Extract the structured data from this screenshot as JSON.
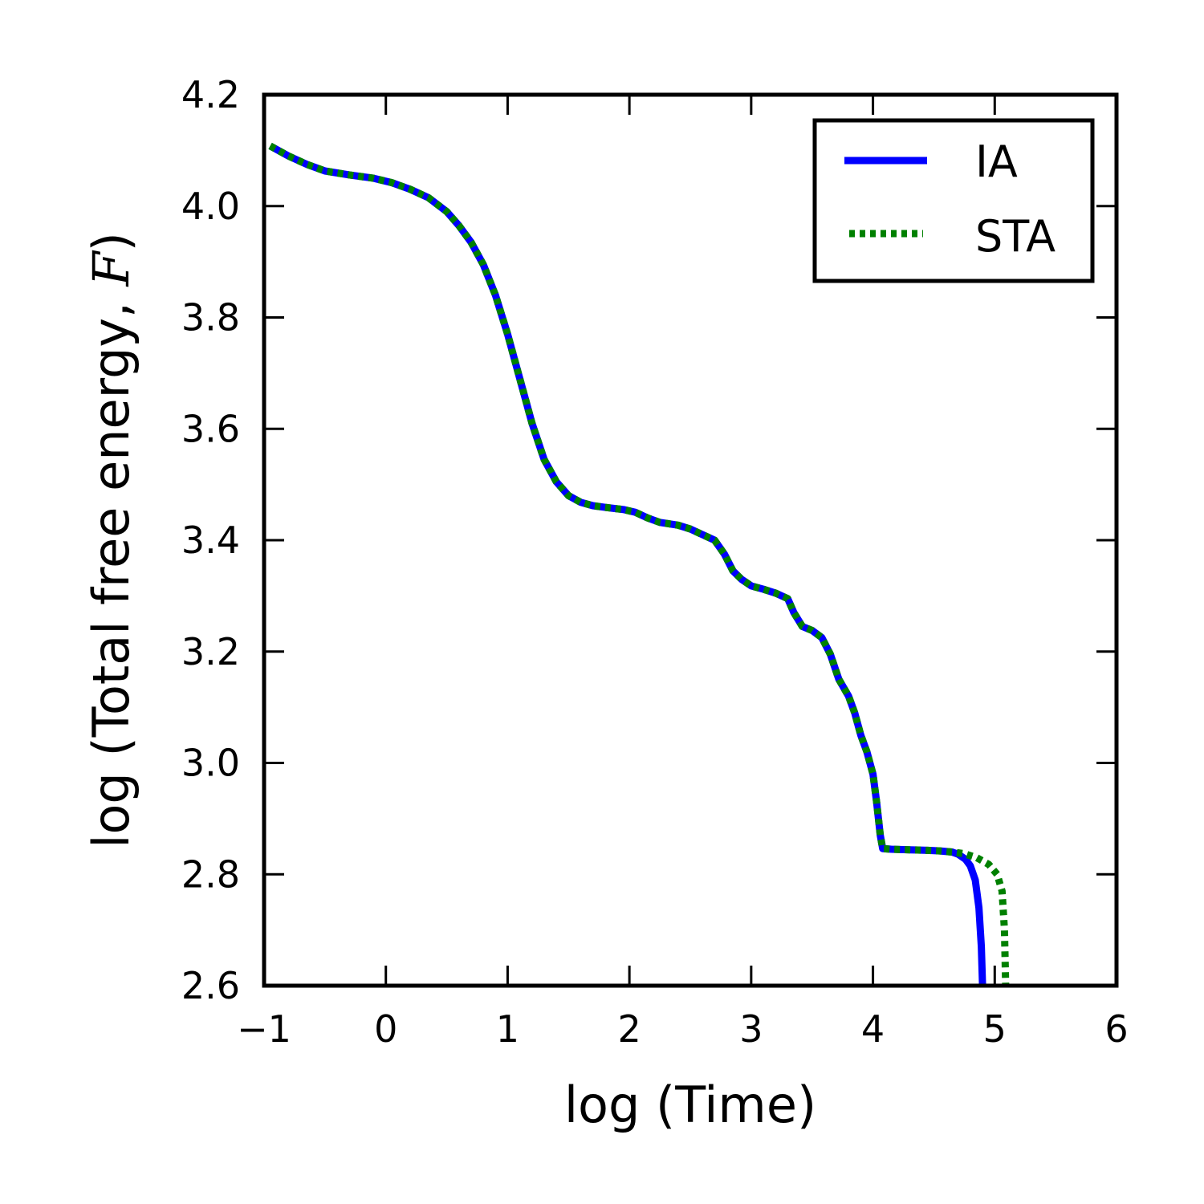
{
  "chart_data": {
    "type": "line",
    "title": "",
    "xlabel": "log (Time)",
    "ylabel_prefix": "log (Total free energy, ",
    "ylabel_symbol": "F",
    "ylabel_suffix": ")",
    "xlim": [
      -1,
      6
    ],
    "ylim": [
      2.6,
      4.2
    ],
    "x_ticks": [
      -1,
      0,
      1,
      2,
      3,
      4,
      5,
      6
    ],
    "x_tick_labels": [
      "−1",
      "0",
      "1",
      "2",
      "3",
      "4",
      "5",
      "6"
    ],
    "y_ticks": [
      2.6,
      2.8,
      3.0,
      3.2,
      3.4,
      3.6,
      3.8,
      4.0,
      4.2
    ],
    "y_tick_labels": [
      "2.6",
      "2.8",
      "3.0",
      "3.2",
      "3.4",
      "3.6",
      "3.8",
      "4.0",
      "4.2"
    ],
    "grid": false,
    "legend_position": "top-right",
    "series": [
      {
        "name": "IA",
        "color": "#0000ff",
        "style": "solid",
        "points": [
          [
            -0.95,
            4.108
          ],
          [
            -0.8,
            4.09
          ],
          [
            -0.65,
            4.075
          ],
          [
            -0.5,
            4.063
          ],
          [
            -0.3,
            4.056
          ],
          [
            -0.1,
            4.05
          ],
          [
            0.05,
            4.042
          ],
          [
            0.2,
            4.03
          ],
          [
            0.35,
            4.015
          ],
          [
            0.5,
            3.99
          ],
          [
            0.6,
            3.965
          ],
          [
            0.7,
            3.935
          ],
          [
            0.8,
            3.895
          ],
          [
            0.9,
            3.84
          ],
          [
            1.0,
            3.77
          ],
          [
            1.1,
            3.69
          ],
          [
            1.2,
            3.61
          ],
          [
            1.3,
            3.545
          ],
          [
            1.4,
            3.505
          ],
          [
            1.5,
            3.48
          ],
          [
            1.6,
            3.468
          ],
          [
            1.7,
            3.462
          ],
          [
            1.8,
            3.459
          ],
          [
            1.95,
            3.455
          ],
          [
            2.05,
            3.45
          ],
          [
            2.15,
            3.44
          ],
          [
            2.25,
            3.432
          ],
          [
            2.4,
            3.427
          ],
          [
            2.5,
            3.42
          ],
          [
            2.6,
            3.41
          ],
          [
            2.7,
            3.4
          ],
          [
            2.78,
            3.375
          ],
          [
            2.85,
            3.345
          ],
          [
            2.92,
            3.33
          ],
          [
            3.0,
            3.318
          ],
          [
            3.1,
            3.312
          ],
          [
            3.2,
            3.305
          ],
          [
            3.3,
            3.295
          ],
          [
            3.35,
            3.27
          ],
          [
            3.42,
            3.245
          ],
          [
            3.5,
            3.238
          ],
          [
            3.58,
            3.225
          ],
          [
            3.65,
            3.195
          ],
          [
            3.72,
            3.15
          ],
          [
            3.8,
            3.12
          ],
          [
            3.85,
            3.09
          ],
          [
            3.9,
            3.05
          ],
          [
            3.95,
            3.02
          ],
          [
            4.0,
            2.98
          ],
          [
            4.03,
            2.93
          ],
          [
            4.06,
            2.87
          ],
          [
            4.08,
            2.846
          ],
          [
            4.15,
            2.845
          ],
          [
            4.3,
            2.844
          ],
          [
            4.45,
            2.843
          ],
          [
            4.55,
            2.842
          ],
          [
            4.65,
            2.84
          ],
          [
            4.7,
            2.836
          ],
          [
            4.76,
            2.827
          ],
          [
            4.8,
            2.815
          ],
          [
            4.84,
            2.79
          ],
          [
            4.87,
            2.74
          ],
          [
            4.89,
            2.67
          ],
          [
            4.9,
            2.6
          ]
        ]
      },
      {
        "name": "STA",
        "color": "#008000",
        "style": "dotted",
        "points": [
          [
            -0.95,
            4.108
          ],
          [
            -0.8,
            4.09
          ],
          [
            -0.65,
            4.075
          ],
          [
            -0.5,
            4.063
          ],
          [
            -0.3,
            4.056
          ],
          [
            -0.1,
            4.05
          ],
          [
            0.05,
            4.042
          ],
          [
            0.2,
            4.03
          ],
          [
            0.35,
            4.015
          ],
          [
            0.5,
            3.99
          ],
          [
            0.6,
            3.965
          ],
          [
            0.7,
            3.935
          ],
          [
            0.8,
            3.895
          ],
          [
            0.9,
            3.84
          ],
          [
            1.0,
            3.77
          ],
          [
            1.1,
            3.69
          ],
          [
            1.2,
            3.61
          ],
          [
            1.3,
            3.545
          ],
          [
            1.4,
            3.505
          ],
          [
            1.5,
            3.48
          ],
          [
            1.6,
            3.468
          ],
          [
            1.7,
            3.462
          ],
          [
            1.8,
            3.459
          ],
          [
            1.95,
            3.455
          ],
          [
            2.05,
            3.45
          ],
          [
            2.15,
            3.44
          ],
          [
            2.25,
            3.432
          ],
          [
            2.4,
            3.427
          ],
          [
            2.5,
            3.42
          ],
          [
            2.6,
            3.41
          ],
          [
            2.7,
            3.4
          ],
          [
            2.78,
            3.375
          ],
          [
            2.85,
            3.345
          ],
          [
            2.92,
            3.33
          ],
          [
            3.0,
            3.318
          ],
          [
            3.1,
            3.312
          ],
          [
            3.2,
            3.305
          ],
          [
            3.3,
            3.295
          ],
          [
            3.35,
            3.27
          ],
          [
            3.42,
            3.245
          ],
          [
            3.5,
            3.238
          ],
          [
            3.58,
            3.225
          ],
          [
            3.65,
            3.195
          ],
          [
            3.72,
            3.15
          ],
          [
            3.8,
            3.12
          ],
          [
            3.85,
            3.09
          ],
          [
            3.9,
            3.05
          ],
          [
            3.95,
            3.02
          ],
          [
            4.0,
            2.98
          ],
          [
            4.03,
            2.93
          ],
          [
            4.06,
            2.87
          ],
          [
            4.08,
            2.846
          ],
          [
            4.15,
            2.845
          ],
          [
            4.3,
            2.844
          ],
          [
            4.45,
            2.843
          ],
          [
            4.55,
            2.842
          ],
          [
            4.65,
            2.84
          ],
          [
            4.75,
            2.837
          ],
          [
            4.85,
            2.83
          ],
          [
            4.95,
            2.818
          ],
          [
            5.02,
            2.8
          ],
          [
            5.06,
            2.77
          ],
          [
            5.08,
            2.7
          ],
          [
            5.09,
            2.6
          ]
        ]
      }
    ]
  }
}
